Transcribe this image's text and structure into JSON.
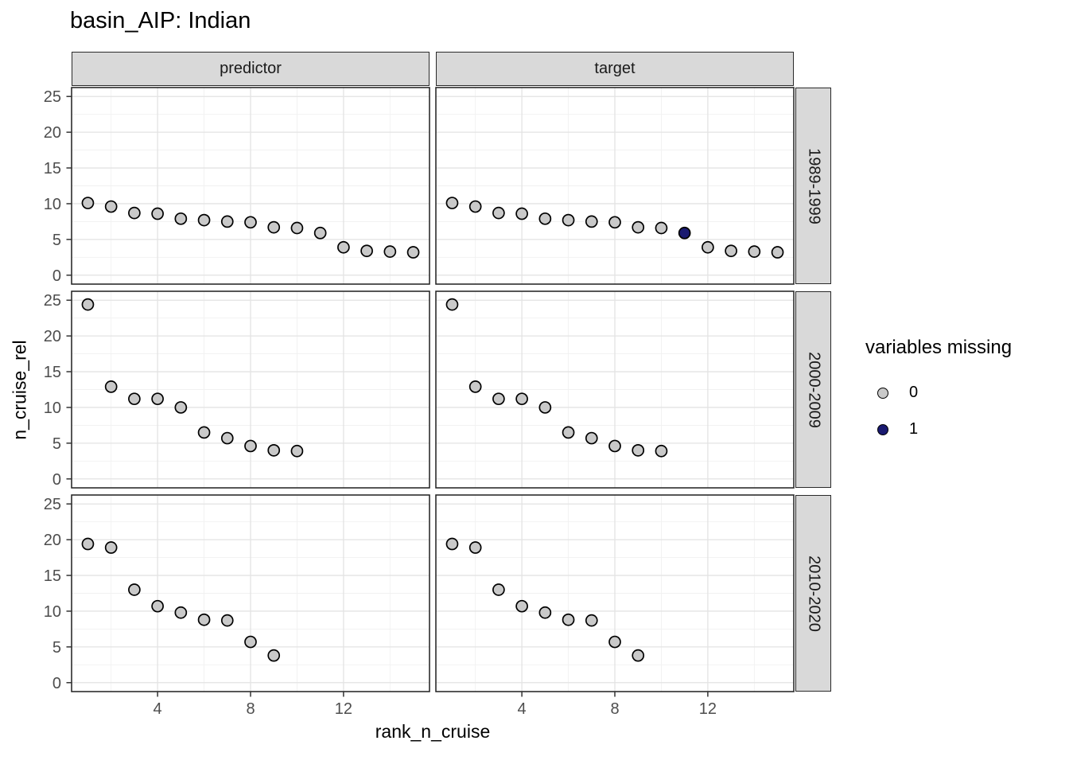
{
  "title": "basin_AIP: Indian",
  "chart_data": {
    "type": "scatter",
    "title": "basin_AIP: Indian",
    "xlabel": "rank_n_cruise",
    "ylabel": "n_cruise_rel",
    "x_ticks": [
      4,
      8,
      12
    ],
    "y_ticks": [
      0,
      5,
      10,
      15,
      20,
      25
    ],
    "x_minor_gridlines": [
      2,
      6,
      10,
      14
    ],
    "y_minor_gridlines": [
      2.5,
      7.5,
      12.5,
      17.5,
      22.5
    ],
    "x_range": [
      0.3,
      15.7
    ],
    "y_range": [
      -1.25,
      26.25
    ],
    "grid": "on",
    "legend_position": "right",
    "facet_cols": [
      "predictor",
      "target"
    ],
    "facet_rows": [
      "1989-1999",
      "2000-2009",
      "2010-2020"
    ],
    "legend": {
      "title": "variables missing",
      "entries": [
        {
          "label": "0",
          "color": "#c9c9c9"
        },
        {
          "label": "1",
          "color": "#191970"
        }
      ]
    },
    "colors": {
      "point_fill_missing0": "#c9c9c9",
      "point_fill_missing1": "#191970",
      "point_stroke": "#000000",
      "strip_fill": "#d9d9d9",
      "panel_border": "#1f1f1f",
      "grid_major": "#e3e3e3",
      "grid_minor": "#f1f1f1",
      "tick_text": "#4d4d4d",
      "tick_mark": "#333333"
    },
    "panels": [
      {
        "row": "1989-1999",
        "col": "predictor",
        "x": [
          1,
          2,
          3,
          4,
          5,
          6,
          7,
          8,
          9,
          10,
          11,
          12,
          13,
          14,
          15
        ],
        "y": [
          10.1,
          9.6,
          8.7,
          8.6,
          7.9,
          7.7,
          7.5,
          7.4,
          6.7,
          6.6,
          5.9,
          3.9,
          3.4,
          3.3,
          3.2
        ],
        "missing": [
          0,
          0,
          0,
          0,
          0,
          0,
          0,
          0,
          0,
          0,
          0,
          0,
          0,
          0,
          0
        ]
      },
      {
        "row": "1989-1999",
        "col": "target",
        "x": [
          1,
          2,
          3,
          4,
          5,
          6,
          7,
          8,
          9,
          10,
          11,
          12,
          13,
          14,
          15
        ],
        "y": [
          10.1,
          9.6,
          8.7,
          8.6,
          7.9,
          7.7,
          7.5,
          7.4,
          6.7,
          6.6,
          5.9,
          3.9,
          3.4,
          3.3,
          3.2
        ],
        "missing": [
          0,
          0,
          0,
          0,
          0,
          0,
          0,
          0,
          0,
          0,
          1,
          0,
          0,
          0,
          0
        ]
      },
      {
        "row": "2000-2009",
        "col": "predictor",
        "x": [
          1,
          2,
          3,
          4,
          5,
          6,
          7,
          8,
          9,
          10
        ],
        "y": [
          24.4,
          12.9,
          11.2,
          11.2,
          10.0,
          6.5,
          5.7,
          4.6,
          4.0,
          3.9
        ],
        "missing": [
          0,
          0,
          0,
          0,
          0,
          0,
          0,
          0,
          0,
          0
        ]
      },
      {
        "row": "2000-2009",
        "col": "target",
        "x": [
          1,
          2,
          3,
          4,
          5,
          6,
          7,
          8,
          9,
          10
        ],
        "y": [
          24.4,
          12.9,
          11.2,
          11.2,
          10.0,
          6.5,
          5.7,
          4.6,
          4.0,
          3.9
        ],
        "missing": [
          0,
          0,
          0,
          0,
          0,
          0,
          0,
          0,
          0,
          0
        ]
      },
      {
        "row": "2010-2020",
        "col": "predictor",
        "x": [
          1,
          2,
          3,
          4,
          5,
          6,
          7,
          8,
          9
        ],
        "y": [
          19.4,
          18.9,
          13.0,
          10.7,
          9.8,
          8.8,
          8.7,
          5.7,
          3.8
        ],
        "missing": [
          0,
          0,
          0,
          0,
          0,
          0,
          0,
          0,
          0
        ]
      },
      {
        "row": "2010-2020",
        "col": "target",
        "x": [
          1,
          2,
          3,
          4,
          5,
          6,
          7,
          8,
          9
        ],
        "y": [
          19.4,
          18.9,
          13.0,
          10.7,
          9.8,
          8.8,
          8.7,
          5.7,
          3.8
        ],
        "missing": [
          0,
          0,
          0,
          0,
          0,
          0,
          0,
          0,
          0
        ]
      }
    ]
  }
}
